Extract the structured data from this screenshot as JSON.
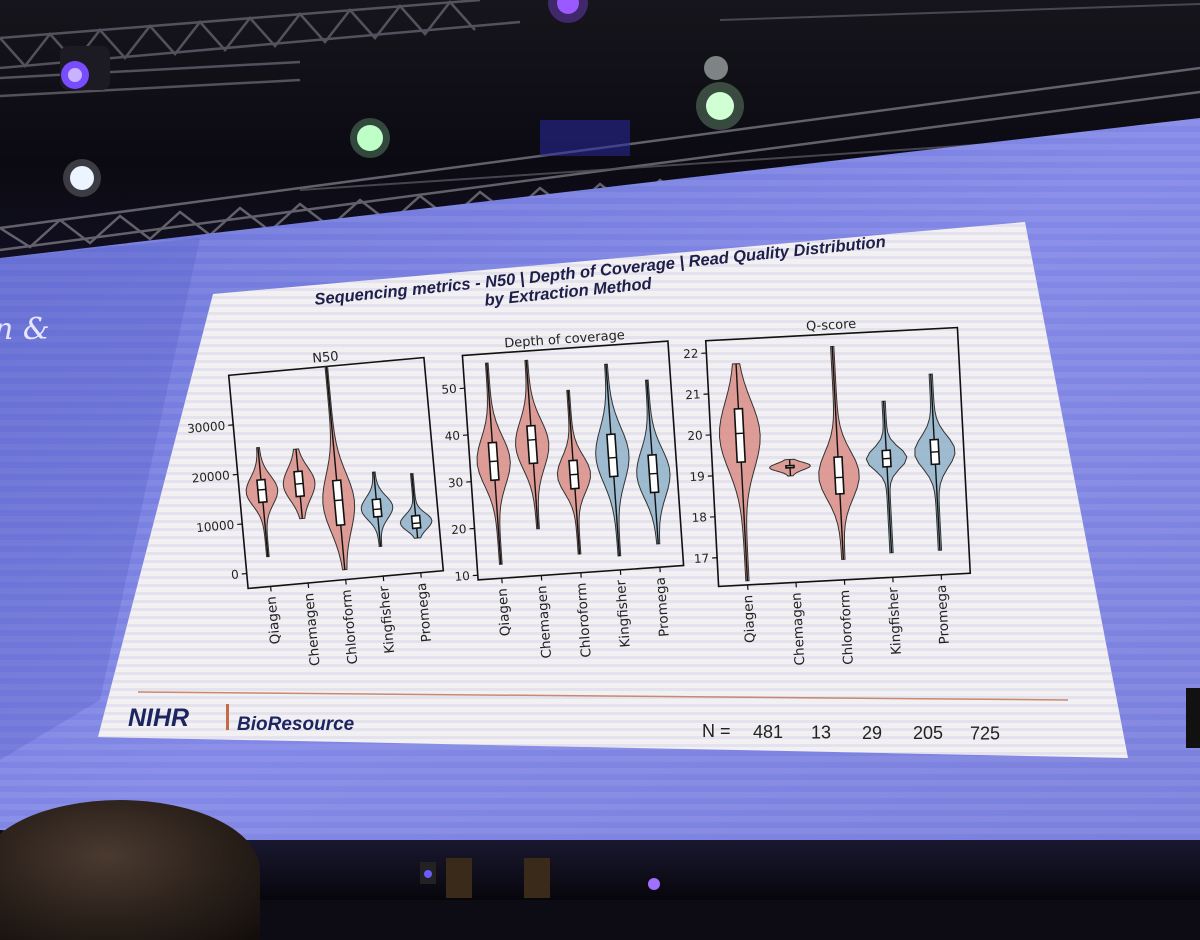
{
  "screen_edge_text": "n &",
  "slide": {
    "title_line1": "Sequencing metrics - N50 | Depth of Coverage | Read Quality Distribution",
    "title_line2": "by Extraction Method",
    "logo_left": "NIHR",
    "logo_right": "BioResource",
    "n_label": "N =",
    "n_values": [
      "481",
      "13",
      "29",
      "205",
      "725"
    ]
  },
  "chart_data": [
    {
      "type": "violin",
      "title": "N50",
      "categories": [
        "Qiagen",
        "Chemagen",
        "Chloroform",
        "Kingfisher",
        "Promega"
      ],
      "yticks": [
        "0",
        "10000",
        "20000",
        "30000"
      ],
      "ylim": [
        -3000,
        40000
      ],
      "series": [
        {
          "category": "Qiagen",
          "min": 3000,
          "q1": 14000,
          "median": 16500,
          "q3": 18500,
          "max": 25000,
          "color": "#d98d86"
        },
        {
          "category": "Chemagen",
          "min": 10000,
          "q1": 14500,
          "median": 17000,
          "q3": 19500,
          "max": 24000,
          "color": "#d98d86"
        },
        {
          "category": "Chloroform",
          "min": -1000,
          "q1": 8000,
          "median": 13000,
          "q3": 17000,
          "max": 40000,
          "color": "#d98d86"
        },
        {
          "category": "Kingfisher",
          "min": 3000,
          "q1": 9000,
          "median": 10500,
          "q3": 12500,
          "max": 18000,
          "color": "#8fb1c9"
        },
        {
          "category": "Promega",
          "min": 4000,
          "q1": 6000,
          "median": 7000,
          "q3": 8500,
          "max": 17000,
          "color": "#8fb1c9"
        }
      ]
    },
    {
      "type": "violin",
      "title": "Depth of coverage",
      "categories": [
        "Qiagen",
        "Chemagen",
        "Chloroform",
        "Kingfisher",
        "Promega"
      ],
      "yticks": [
        "10",
        "20",
        "30",
        "40",
        "50"
      ],
      "ylim": [
        9,
        57
      ],
      "series": [
        {
          "category": "Qiagen",
          "min": 12,
          "q1": 30,
          "median": 34,
          "q3": 38,
          "max": 55,
          "color": "#d98d86"
        },
        {
          "category": "Chemagen",
          "min": 19,
          "q1": 33,
          "median": 38,
          "q3": 41,
          "max": 55,
          "color": "#d98d86"
        },
        {
          "category": "Chloroform",
          "min": 13,
          "q1": 27,
          "median": 30,
          "q3": 33,
          "max": 48,
          "color": "#d98d86"
        },
        {
          "category": "Kingfisher",
          "min": 12,
          "q1": 29,
          "median": 33,
          "q3": 38,
          "max": 53,
          "color": "#8fb1c9"
        },
        {
          "category": "Promega",
          "min": 14,
          "q1": 25,
          "median": 29,
          "q3": 33,
          "max": 49,
          "color": "#8fb1c9"
        }
      ]
    },
    {
      "type": "violin",
      "title": "Q-score",
      "categories": [
        "Qiagen",
        "Chemagen",
        "Chloroform",
        "Kingfisher",
        "Promega"
      ],
      "yticks": [
        "17",
        "18",
        "19",
        "20",
        "21",
        "22"
      ],
      "ylim": [
        16.3,
        22.3
      ],
      "series": [
        {
          "category": "Qiagen",
          "min": 16.4,
          "q1": 19.3,
          "median": 20.0,
          "q3": 20.6,
          "max": 21.7,
          "color": "#d98d86"
        },
        {
          "category": "Chemagen",
          "min": 18.9,
          "q1": 19.1,
          "median": 19.1,
          "q3": 19.15,
          "max": 19.3,
          "color": "#d98d86"
        },
        {
          "category": "Chloroform",
          "min": 16.8,
          "q1": 18.4,
          "median": 18.8,
          "q3": 19.3,
          "max": 22.0,
          "color": "#d98d86"
        },
        {
          "category": "Kingfisher",
          "min": 16.9,
          "q1": 19.0,
          "median": 19.2,
          "q3": 19.4,
          "max": 20.6,
          "color": "#8fb1c9"
        },
        {
          "category": "Promega",
          "min": 16.9,
          "q1": 19.0,
          "median": 19.3,
          "q3": 19.6,
          "max": 21.2,
          "color": "#8fb1c9"
        }
      ]
    }
  ]
}
